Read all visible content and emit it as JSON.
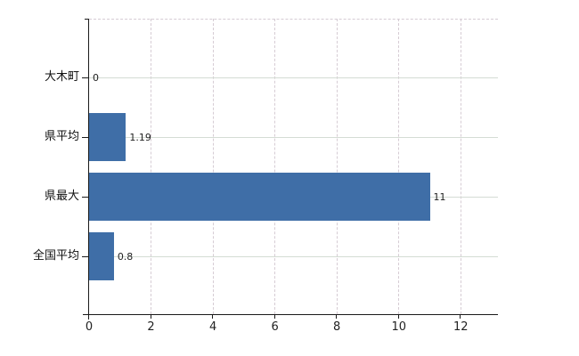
{
  "chart_data": {
    "type": "bar",
    "orientation": "horizontal",
    "title": "",
    "categories": [
      "大木町",
      "県平均",
      "県最大",
      "全国平均"
    ],
    "values": [
      0,
      1.19,
      11,
      0.8
    ],
    "value_labels": [
      "0",
      "1.19",
      "11",
      "0.8"
    ],
    "x_ticks": [
      0,
      2,
      4,
      6,
      8,
      10,
      12
    ],
    "x_tick_labels": [
      "0",
      "2",
      "4",
      "6",
      "8",
      "10",
      "12"
    ],
    "xlim": [
      0,
      13.2
    ],
    "grid": true,
    "legend": "none",
    "colors": {
      "bar": "#3f6ea7",
      "h_gridline": "#d4dcd4",
      "v_gridline": "#d6ccd4",
      "axis": "#1a1a1a",
      "text": "#222222",
      "background": "#ffffff"
    }
  }
}
